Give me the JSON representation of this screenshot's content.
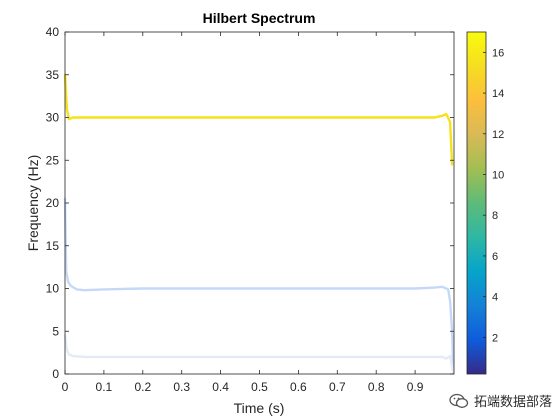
{
  "chart_data": {
    "type": "line",
    "title": "Hilbert Spectrum",
    "xlabel": "Time (s)",
    "ylabel": "Frequency (Hz)",
    "xlim": [
      0,
      1
    ],
    "ylim": [
      0,
      40
    ],
    "xticks": [
      "0",
      "0.1",
      "0.2",
      "0.3",
      "0.4",
      "0.5",
      "0.6",
      "0.7",
      "0.8",
      "0.9"
    ],
    "yticks": [
      "0",
      "5",
      "10",
      "15",
      "20",
      "25",
      "30",
      "35",
      "40"
    ],
    "grid": false,
    "colormap": "parula",
    "colorbar": {
      "ticks": [
        "2",
        "4",
        "6",
        "8",
        "10",
        "12",
        "14",
        "16"
      ],
      "range": [
        0.2,
        17
      ]
    },
    "series": [
      {
        "amplitude": 16.5,
        "color": "#f5e21a",
        "x": [
          0,
          0.005,
          0.01,
          0.02,
          0.05,
          0.1,
          0.2,
          0.3,
          0.4,
          0.5,
          0.6,
          0.7,
          0.8,
          0.9,
          0.95,
          0.97,
          0.98,
          0.99,
          0.995
        ],
        "y": [
          35,
          31,
          29.8,
          30,
          30,
          30,
          30,
          30,
          30,
          30,
          30,
          30,
          30,
          30,
          30,
          30.2,
          30.4,
          29.5,
          24.5
        ]
      },
      {
        "amplitude": 5.5,
        "color": "#c6d8f8",
        "x": [
          0,
          0.003,
          0.008,
          0.015,
          0.03,
          0.05,
          0.1,
          0.2,
          0.3,
          0.4,
          0.5,
          0.6,
          0.7,
          0.8,
          0.9,
          0.95,
          0.97,
          0.985,
          0.99,
          0.995,
          0.998
        ],
        "y": [
          20.5,
          12,
          10.8,
          10.3,
          9.9,
          9.8,
          9.9,
          10,
          10,
          10,
          10,
          10,
          10,
          10,
          10,
          10.1,
          10.2,
          9.9,
          8.5,
          5,
          0.4
        ]
      },
      {
        "amplitude": 1.5,
        "color": "#e4eaf6",
        "x": [
          0,
          0.005,
          0.01,
          0.02,
          0.05,
          0.1,
          0.2,
          0.3,
          0.4,
          0.5,
          0.6,
          0.7,
          0.8,
          0.9,
          0.95,
          0.97,
          0.98,
          0.99,
          0.995,
          0.998
        ],
        "y": [
          4.5,
          2.8,
          2.3,
          2.1,
          2,
          2,
          2,
          2,
          2,
          2,
          2,
          2,
          2,
          2,
          2,
          2,
          1.8,
          2.1,
          0.8,
          0.1
        ]
      }
    ]
  },
  "watermark": {
    "text": "拓端数据部落",
    "icon": "wechat-icon"
  }
}
